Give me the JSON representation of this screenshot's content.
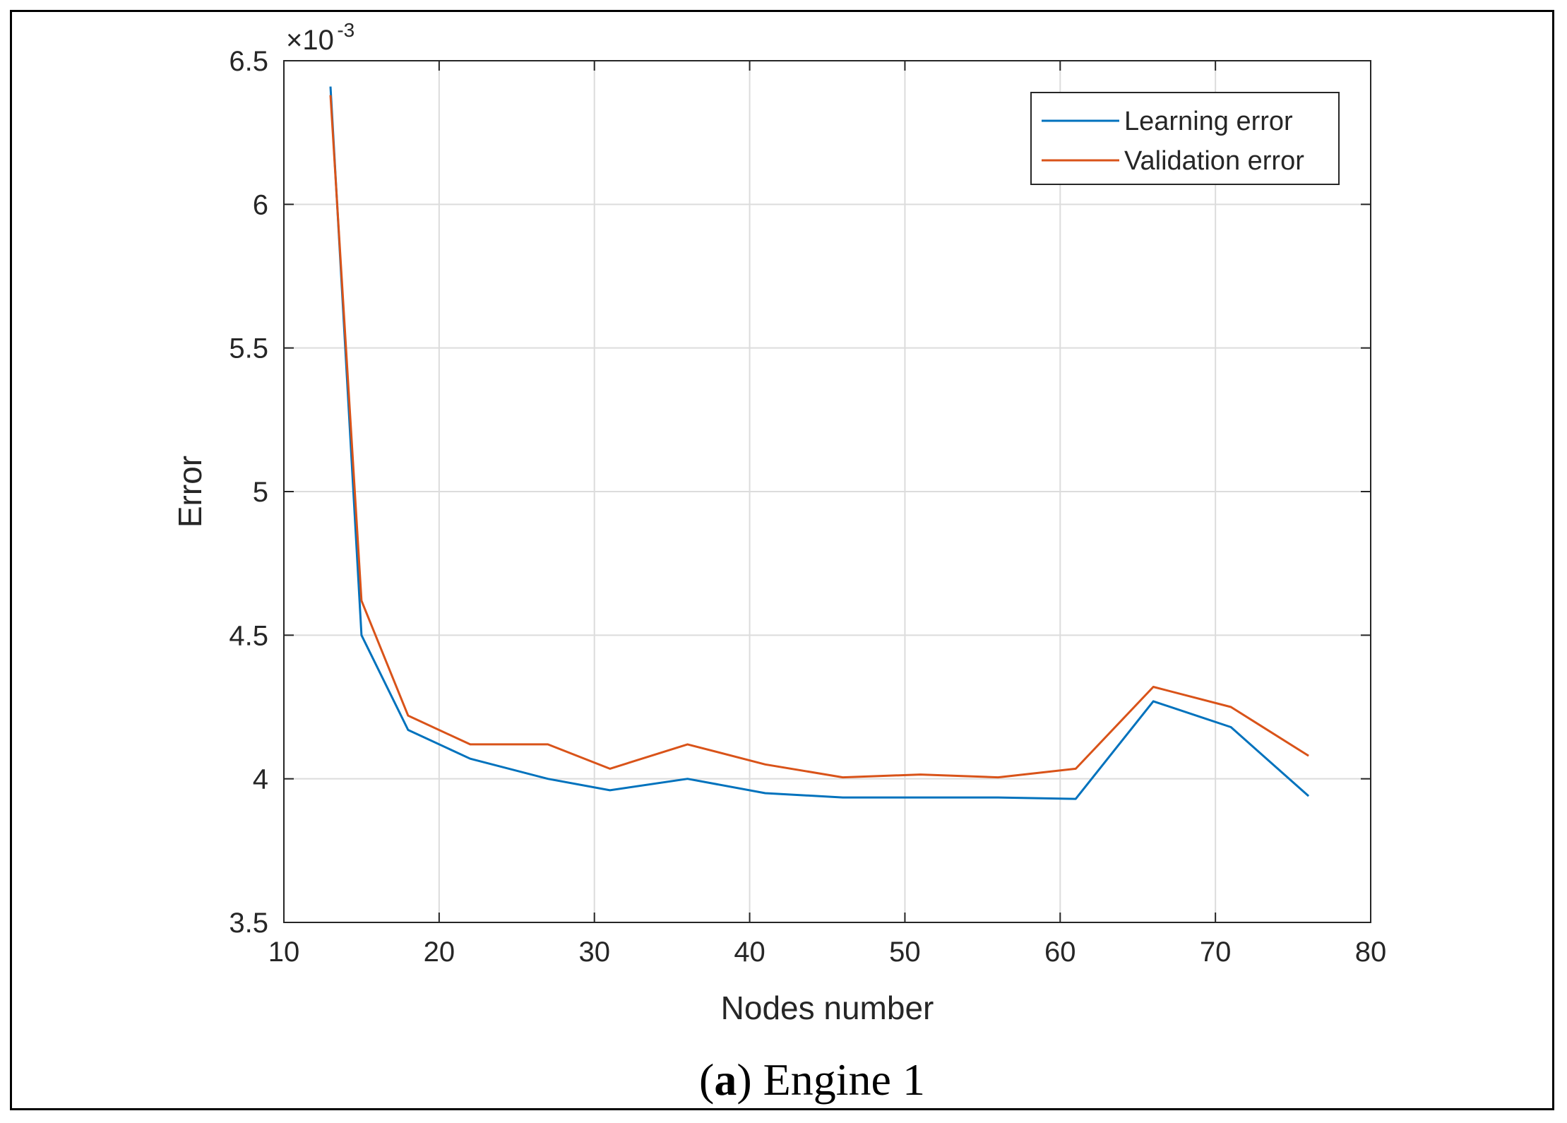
{
  "chart_data": {
    "type": "line",
    "xlabel": "Nodes number",
    "ylabel": "Error",
    "y_multiplier": {
      "base": "×10",
      "exponent": "-3"
    },
    "xlim": [
      10,
      80
    ],
    "ylim": [
      3.5,
      6.5
    ],
    "xticks": [
      "10",
      "20",
      "30",
      "40",
      "50",
      "60",
      "70",
      "80"
    ],
    "yticks": [
      "3.5",
      "4",
      "4.5",
      "5",
      "5.5",
      "6",
      "6.5"
    ],
    "grid": true,
    "legend_position": "top-right",
    "series": [
      {
        "name": "Learning error",
        "color": "#0072BD",
        "x": [
          13,
          15,
          18,
          22,
          27,
          31,
          36,
          41,
          46,
          51,
          56,
          61,
          66,
          71,
          76
        ],
        "y": [
          6.41,
          4.5,
          4.17,
          4.07,
          4.0,
          3.96,
          4.0,
          3.95,
          3.935,
          3.935,
          3.935,
          3.93,
          4.27,
          4.18,
          3.94
        ]
      },
      {
        "name": "Validation error",
        "color": "#D95319",
        "x": [
          13,
          15,
          18,
          22,
          27,
          31,
          36,
          41,
          46,
          51,
          56,
          61,
          66,
          71,
          76
        ],
        "y": [
          6.38,
          4.62,
          4.22,
          4.12,
          4.12,
          4.035,
          4.12,
          4.05,
          4.005,
          4.015,
          4.005,
          4.035,
          4.32,
          4.25,
          4.08
        ]
      }
    ]
  },
  "caption": {
    "label": "a",
    "text": " Engine 1"
  }
}
